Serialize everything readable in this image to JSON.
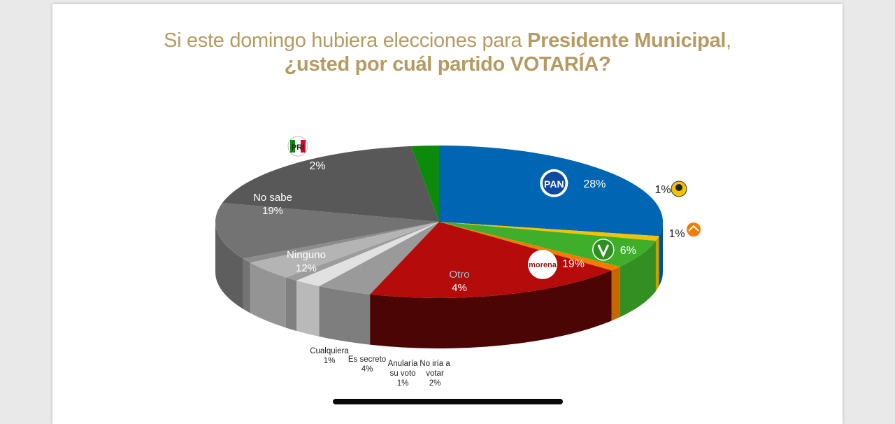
{
  "title": {
    "line1_regular": "Si este domingo hubiera elecciones para ",
    "line1_bold": "Presidente Municipal",
    "line1_tail": ",",
    "line2": "¿usted por cuál partido VOTARÍA?"
  },
  "colors": {
    "title": "#b59a63",
    "PAN": "#0065b3",
    "PRD": "#f2c300",
    "PVEM": "#3fae2a",
    "MC": "#f07d00",
    "MORENA": "#b50b0b",
    "Otro": "#9a9a9a",
    "PRI": "#0b8a0b",
    "neutral": "#6f6f6f"
  },
  "chart_data": {
    "type": "pie",
    "title": "Si este domingo hubiera elecciones para Presidente Municipal, ¿usted por cuál partido VOTARÍA?",
    "unit": "%",
    "slices": [
      {
        "label": "PAN",
        "value": 28,
        "value_label": "28%",
        "color": "#0065b3",
        "logo": "pan-logo-icon"
      },
      {
        "label": "PRD",
        "value": 1,
        "value_label": "1%",
        "color": "#f2c300",
        "logo": "prd-logo-icon"
      },
      {
        "label": "PVEM",
        "value": 6,
        "value_label": "6%",
        "color": "#3fae2a",
        "logo": "pvem-logo-icon"
      },
      {
        "label": "MC",
        "value": 1,
        "value_label": "1%",
        "color": "#f07d00",
        "logo": "mc-logo-icon"
      },
      {
        "label": "MORENA",
        "value": 19,
        "value_label": "19%",
        "color": "#b50b0b",
        "logo": "morena-logo-icon",
        "logo_text": "morena"
      },
      {
        "label": "Otro",
        "value": 4,
        "value_label": "4%",
        "color": "#9a9a9a"
      },
      {
        "label": "No iría a votar",
        "value": 2,
        "value_label": "2%",
        "color": "#e1e1e1"
      },
      {
        "label": "Anularía su voto",
        "value": 1,
        "value_label": "1%",
        "color": "#9c9c9c"
      },
      {
        "label": "Es secreto",
        "value": 4,
        "value_label": "4%",
        "color": "#b4b4b4"
      },
      {
        "label": "Cualquiera",
        "value": 1,
        "value_label": "1%",
        "color": "#8c8c8c"
      },
      {
        "label": "Ninguno",
        "value": 12,
        "value_label": "12%",
        "color": "#737373"
      },
      {
        "label": "No sabe",
        "value": 19,
        "value_label": "19%",
        "color": "#585858"
      },
      {
        "label": "PRI",
        "value": 2,
        "value_label": "2%",
        "color": "#0b8a0b",
        "logo": "pri-logo-icon"
      }
    ],
    "logo_texts": {
      "PAN": "PAN",
      "PRI": "PRI",
      "PRD": "PRD",
      "MORENA": "morena"
    },
    "outside_labels": {
      "Cualquiera": [
        "Cualquiera",
        "1%"
      ],
      "Es secreto": [
        "Es secreto",
        "4%"
      ],
      "Anularía su voto": [
        "Anularía",
        "su voto",
        "1%"
      ],
      "No iría a votar": [
        "No iría a",
        "votar",
        "2%"
      ]
    },
    "inside_labels": {
      "No sabe": [
        "No sabe",
        "19%"
      ],
      "Ninguno": [
        "Ninguno",
        "12%"
      ],
      "Otro": [
        "Otro",
        "4%"
      ]
    },
    "legend": "none",
    "style": "3d-pie"
  }
}
